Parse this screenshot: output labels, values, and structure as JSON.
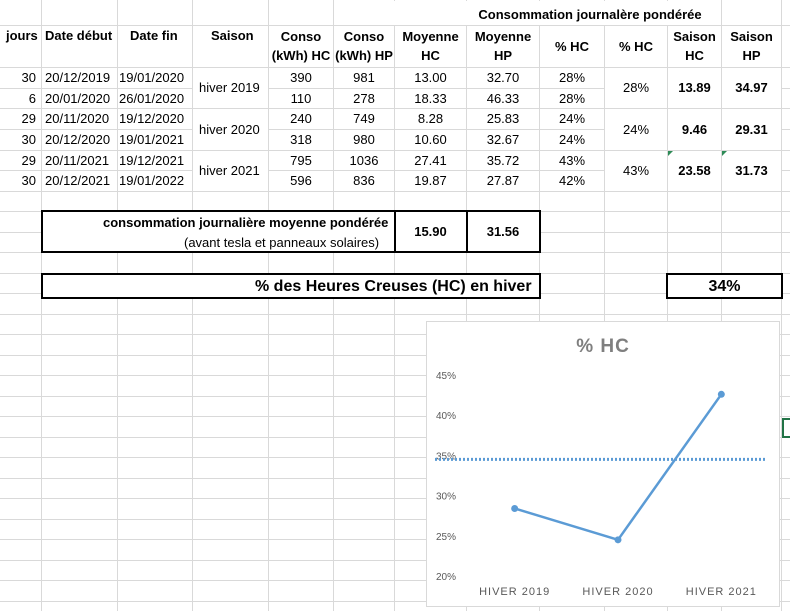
{
  "sheet": {
    "group_header": "Consommation journalère pondérée",
    "headers": {
      "jours": "jours",
      "date_debut": "Date début",
      "date_fin": "Date fin",
      "saison": "Saison",
      "conso_hc_1": "Conso",
      "conso_hc_2": "(kWh) HC",
      "conso_hp_1": "Conso",
      "conso_hp_2": "(kWh) HP",
      "moy_hc_1": "Moyenne",
      "moy_hc_2": "HC",
      "moy_hp_1": "Moyenne",
      "moy_hp_2": "HP",
      "pct_hc_1": "% HC",
      "pct_hc_2": "% HC",
      "saison_hc_1": "Saison",
      "saison_hc_2": "HC",
      "saison_hp_1": "Saison",
      "saison_hp_2": "HP"
    },
    "rows": [
      {
        "jours": "30",
        "debut": "20/12/2019",
        "fin": "19/01/2020",
        "hc": "390",
        "hp": "981",
        "moy_hc": "13.00",
        "moy_hp": "32.70",
        "pct": "28%"
      },
      {
        "jours": "6",
        "debut": "20/01/2020",
        "fin": "26/01/2020",
        "hc": "110",
        "hp": "278",
        "moy_hc": "18.33",
        "moy_hp": "46.33",
        "pct": "28%"
      },
      {
        "jours": "29",
        "debut": "20/11/2020",
        "fin": "19/12/2020",
        "hc": "240",
        "hp": "749",
        "moy_hc": "8.28",
        "moy_hp": "25.83",
        "pct": "24%"
      },
      {
        "jours": "30",
        "debut": "20/12/2020",
        "fin": "19/01/2021",
        "hc": "318",
        "hp": "980",
        "moy_hc": "10.60",
        "moy_hp": "32.67",
        "pct": "24%"
      },
      {
        "jours": "29",
        "debut": "20/11/2021",
        "fin": "19/12/2021",
        "hc": "795",
        "hp": "1036",
        "moy_hc": "27.41",
        "moy_hp": "35.72",
        "pct": "43%"
      },
      {
        "jours": "30",
        "debut": "20/12/2021",
        "fin": "19/01/2022",
        "hc": "596",
        "hp": "836",
        "moy_hc": "19.87",
        "moy_hp": "27.87",
        "pct": "42%"
      }
    ],
    "seasons": [
      {
        "name": "hiver 2019",
        "pct": "28%",
        "saison_hc": "13.89",
        "saison_hp": "34.97"
      },
      {
        "name": "hiver 2020",
        "pct": "24%",
        "saison_hc": "9.46",
        "saison_hp": "29.31"
      },
      {
        "name": "hiver 2021",
        "pct": "43%",
        "saison_hc": "23.58",
        "saison_hp": "31.73"
      }
    ],
    "summary": {
      "label_1": "consommation journalière moyenne pondérée",
      "label_2": "(avant tesla et panneaux solaires)",
      "hc": "15.90",
      "hp": "31.56"
    },
    "hc_winter": {
      "label": "% des Heures Creuses (HC) en hiver",
      "value": "34%"
    }
  },
  "colors": {
    "grid": "#d9d9d9",
    "series": "#5b9bd5",
    "chart_title": "#7f7f7f",
    "axis_text": "#595959"
  },
  "chart_data": {
    "type": "line",
    "title": "% HC",
    "categories": [
      "HIVER 2019",
      "HIVER 2020",
      "HIVER 2021"
    ],
    "series": [
      {
        "values": [
          0.284,
          0.245,
          0.426
        ]
      }
    ],
    "reference_line": {
      "value": 0.345,
      "style": "dotted"
    },
    "y_ticks": [
      "20%",
      "25%",
      "30%",
      "35%",
      "40%",
      "45%"
    ],
    "ylim": [
      0.2,
      0.45
    ],
    "grid": false,
    "legend": "none"
  }
}
